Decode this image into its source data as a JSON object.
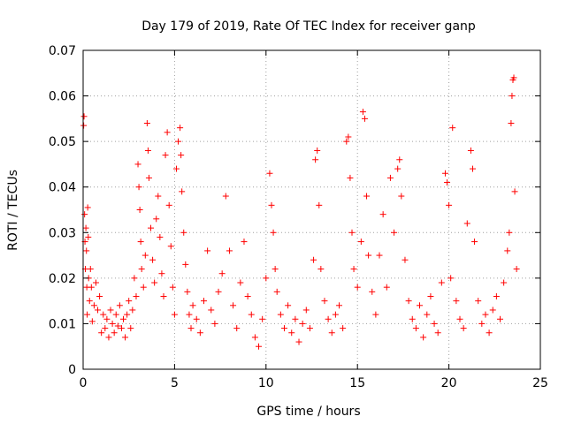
{
  "chart_data": {
    "type": "scatter",
    "title": "Day 179 of 2019, Rate Of TEC Index for receiver ganp",
    "xlabel": "GPS time / hours",
    "ylabel": "ROTI / TECUs",
    "xlim": [
      0,
      25
    ],
    "ylim": [
      0,
      0.07
    ],
    "xticks": [
      "0",
      "5",
      "10",
      "15",
      "20",
      "25"
    ],
    "yticks": [
      "0",
      "0.01",
      "0.02",
      "0.03",
      "0.04",
      "0.05",
      "0.06",
      "0.07"
    ],
    "grid": true,
    "marker": "+",
    "color": "#ff0000",
    "series": [
      {
        "name": "ROTI",
        "points": [
          [
            0.03,
            0.0535
          ],
          [
            0.05,
            0.0555
          ],
          [
            0.08,
            0.034
          ],
          [
            0.1,
            0.028
          ],
          [
            0.12,
            0.022
          ],
          [
            0.15,
            0.031
          ],
          [
            0.18,
            0.026
          ],
          [
            0.2,
            0.018
          ],
          [
            0.22,
            0.012
          ],
          [
            0.25,
            0.0355
          ],
          [
            0.28,
            0.029
          ],
          [
            0.3,
            0.02
          ],
          [
            0.35,
            0.015
          ],
          [
            0.4,
            0.022
          ],
          [
            0.45,
            0.018
          ],
          [
            0.5,
            0.0105
          ],
          [
            0.6,
            0.014
          ],
          [
            0.7,
            0.019
          ],
          [
            0.8,
            0.013
          ],
          [
            0.9,
            0.016
          ],
          [
            1.0,
            0.008
          ],
          [
            1.1,
            0.012
          ],
          [
            1.2,
            0.009
          ],
          [
            1.3,
            0.011
          ],
          [
            1.4,
            0.007
          ],
          [
            1.5,
            0.013
          ],
          [
            1.6,
            0.01
          ],
          [
            1.7,
            0.008
          ],
          [
            1.8,
            0.012
          ],
          [
            1.9,
            0.0095
          ],
          [
            2.0,
            0.014
          ],
          [
            2.1,
            0.009
          ],
          [
            2.2,
            0.011
          ],
          [
            2.3,
            0.007
          ],
          [
            2.4,
            0.012
          ],
          [
            2.5,
            0.015
          ],
          [
            2.6,
            0.009
          ],
          [
            2.7,
            0.013
          ],
          [
            2.8,
            0.02
          ],
          [
            2.9,
            0.016
          ],
          [
            3.0,
            0.045
          ],
          [
            3.05,
            0.04
          ],
          [
            3.1,
            0.035
          ],
          [
            3.15,
            0.028
          ],
          [
            3.2,
            0.022
          ],
          [
            3.3,
            0.018
          ],
          [
            3.4,
            0.025
          ],
          [
            3.5,
            0.054
          ],
          [
            3.55,
            0.048
          ],
          [
            3.6,
            0.042
          ],
          [
            3.7,
            0.031
          ],
          [
            3.8,
            0.024
          ],
          [
            3.9,
            0.019
          ],
          [
            4.0,
            0.033
          ],
          [
            4.1,
            0.038
          ],
          [
            4.2,
            0.029
          ],
          [
            4.3,
            0.021
          ],
          [
            4.4,
            0.016
          ],
          [
            4.5,
            0.047
          ],
          [
            4.6,
            0.052
          ],
          [
            4.7,
            0.036
          ],
          [
            4.8,
            0.027
          ],
          [
            4.9,
            0.018
          ],
          [
            5.0,
            0.012
          ],
          [
            5.1,
            0.044
          ],
          [
            5.2,
            0.05
          ],
          [
            5.3,
            0.053
          ],
          [
            5.35,
            0.047
          ],
          [
            5.4,
            0.039
          ],
          [
            5.5,
            0.03
          ],
          [
            5.6,
            0.023
          ],
          [
            5.7,
            0.017
          ],
          [
            5.8,
            0.012
          ],
          [
            5.9,
            0.009
          ],
          [
            6.0,
            0.014
          ],
          [
            6.2,
            0.011
          ],
          [
            6.4,
            0.008
          ],
          [
            6.6,
            0.015
          ],
          [
            6.8,
            0.026
          ],
          [
            7.0,
            0.013
          ],
          [
            7.2,
            0.01
          ],
          [
            7.4,
            0.017
          ],
          [
            7.6,
            0.021
          ],
          [
            7.8,
            0.038
          ],
          [
            8.0,
            0.026
          ],
          [
            8.2,
            0.014
          ],
          [
            8.4,
            0.009
          ],
          [
            8.6,
            0.019
          ],
          [
            8.8,
            0.028
          ],
          [
            9.0,
            0.016
          ],
          [
            9.2,
            0.012
          ],
          [
            9.4,
            0.007
          ],
          [
            9.6,
            0.005
          ],
          [
            9.8,
            0.011
          ],
          [
            10.0,
            0.02
          ],
          [
            10.2,
            0.043
          ],
          [
            10.3,
            0.036
          ],
          [
            10.4,
            0.03
          ],
          [
            10.5,
            0.022
          ],
          [
            10.6,
            0.017
          ],
          [
            10.8,
            0.012
          ],
          [
            11.0,
            0.009
          ],
          [
            11.2,
            0.014
          ],
          [
            11.4,
            0.008
          ],
          [
            11.6,
            0.011
          ],
          [
            11.8,
            0.006
          ],
          [
            12.0,
            0.01
          ],
          [
            12.2,
            0.013
          ],
          [
            12.4,
            0.009
          ],
          [
            12.6,
            0.024
          ],
          [
            12.7,
            0.046
          ],
          [
            12.8,
            0.048
          ],
          [
            12.9,
            0.036
          ],
          [
            13.0,
            0.022
          ],
          [
            13.2,
            0.015
          ],
          [
            13.4,
            0.011
          ],
          [
            13.6,
            0.008
          ],
          [
            13.8,
            0.012
          ],
          [
            14.0,
            0.014
          ],
          [
            14.2,
            0.009
          ],
          [
            14.4,
            0.05
          ],
          [
            14.5,
            0.051
          ],
          [
            14.6,
            0.042
          ],
          [
            14.7,
            0.03
          ],
          [
            14.8,
            0.022
          ],
          [
            15.0,
            0.018
          ],
          [
            15.2,
            0.028
          ],
          [
            15.3,
            0.0565
          ],
          [
            15.4,
            0.055
          ],
          [
            15.5,
            0.038
          ],
          [
            15.6,
            0.025
          ],
          [
            15.8,
            0.017
          ],
          [
            16.0,
            0.012
          ],
          [
            16.2,
            0.025
          ],
          [
            16.4,
            0.034
          ],
          [
            16.6,
            0.018
          ],
          [
            16.8,
            0.042
          ],
          [
            17.0,
            0.03
          ],
          [
            17.2,
            0.044
          ],
          [
            17.3,
            0.046
          ],
          [
            17.4,
            0.038
          ],
          [
            17.6,
            0.024
          ],
          [
            17.8,
            0.015
          ],
          [
            18.0,
            0.011
          ],
          [
            18.2,
            0.009
          ],
          [
            18.4,
            0.014
          ],
          [
            18.6,
            0.007
          ],
          [
            18.8,
            0.012
          ],
          [
            19.0,
            0.016
          ],
          [
            19.2,
            0.01
          ],
          [
            19.4,
            0.008
          ],
          [
            19.6,
            0.019
          ],
          [
            19.8,
            0.043
          ],
          [
            19.9,
            0.041
          ],
          [
            20.0,
            0.036
          ],
          [
            20.1,
            0.02
          ],
          [
            20.2,
            0.053
          ],
          [
            20.4,
            0.015
          ],
          [
            20.6,
            0.011
          ],
          [
            20.8,
            0.009
          ],
          [
            21.0,
            0.032
          ],
          [
            21.2,
            0.048
          ],
          [
            21.3,
            0.044
          ],
          [
            21.4,
            0.028
          ],
          [
            21.6,
            0.015
          ],
          [
            21.8,
            0.01
          ],
          [
            22.0,
            0.012
          ],
          [
            22.2,
            0.008
          ],
          [
            22.4,
            0.013
          ],
          [
            22.6,
            0.016
          ],
          [
            22.8,
            0.011
          ],
          [
            23.0,
            0.019
          ],
          [
            23.2,
            0.026
          ],
          [
            23.3,
            0.03
          ],
          [
            23.4,
            0.054
          ],
          [
            23.45,
            0.06
          ],
          [
            23.5,
            0.0635
          ],
          [
            23.55,
            0.064
          ],
          [
            23.6,
            0.039
          ],
          [
            23.7,
            0.022
          ]
        ]
      }
    ]
  }
}
